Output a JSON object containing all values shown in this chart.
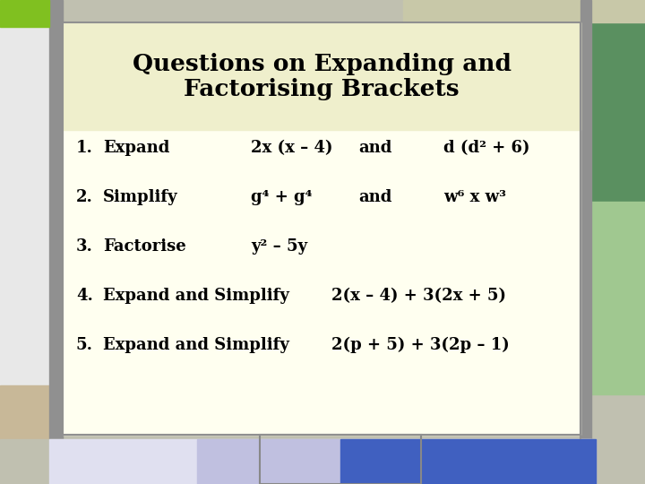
{
  "title_line1": "Questions on Expanding and",
  "title_line2": "Factorising Brackets",
  "main_bg": "#fffff0",
  "title_bg": "#efefcc",
  "outer_bg": "#c0c0b0",
  "questions": [
    {
      "num": "1.",
      "text": "Expand",
      "expr1": "2x (x – 4)",
      "connector": "and",
      "expr2": "d (d² + 6)"
    },
    {
      "num": "2.",
      "text": "Simplify",
      "expr1": "g⁴ + g⁴",
      "connector": "and",
      "expr2": "w⁶ x w³"
    },
    {
      "num": "3.",
      "text": "Factorise",
      "expr1": "y² – 5y",
      "connector": "",
      "expr2": ""
    },
    {
      "num": "4.",
      "text": "Expand and Simplify",
      "expr1": "2(x – 4) + 3(2x + 5)",
      "connector": "",
      "expr2": ""
    },
    {
      "num": "5.",
      "text": "Expand and Simplify",
      "expr1": "2(p + 5) + 3(2p – 1)",
      "connector": "",
      "expr2": ""
    }
  ],
  "left_col_white": "#e8e8e8",
  "left_col_tan": "#c8b898",
  "left_strip_gray": "#909090",
  "top_green": "#80c020",
  "top_lime": "#b8d840",
  "top_tan": "#c8c8a8",
  "right_gray": "#909090",
  "right_green_top": "#5a9060",
  "right_green_bot": "#a0c890",
  "bottom_blue": "#4060c0",
  "bottom_lavender": "#c0c0e0",
  "bottom_white_box": "#e8e8f0",
  "font_size_title": 19,
  "font_size_body": 13
}
